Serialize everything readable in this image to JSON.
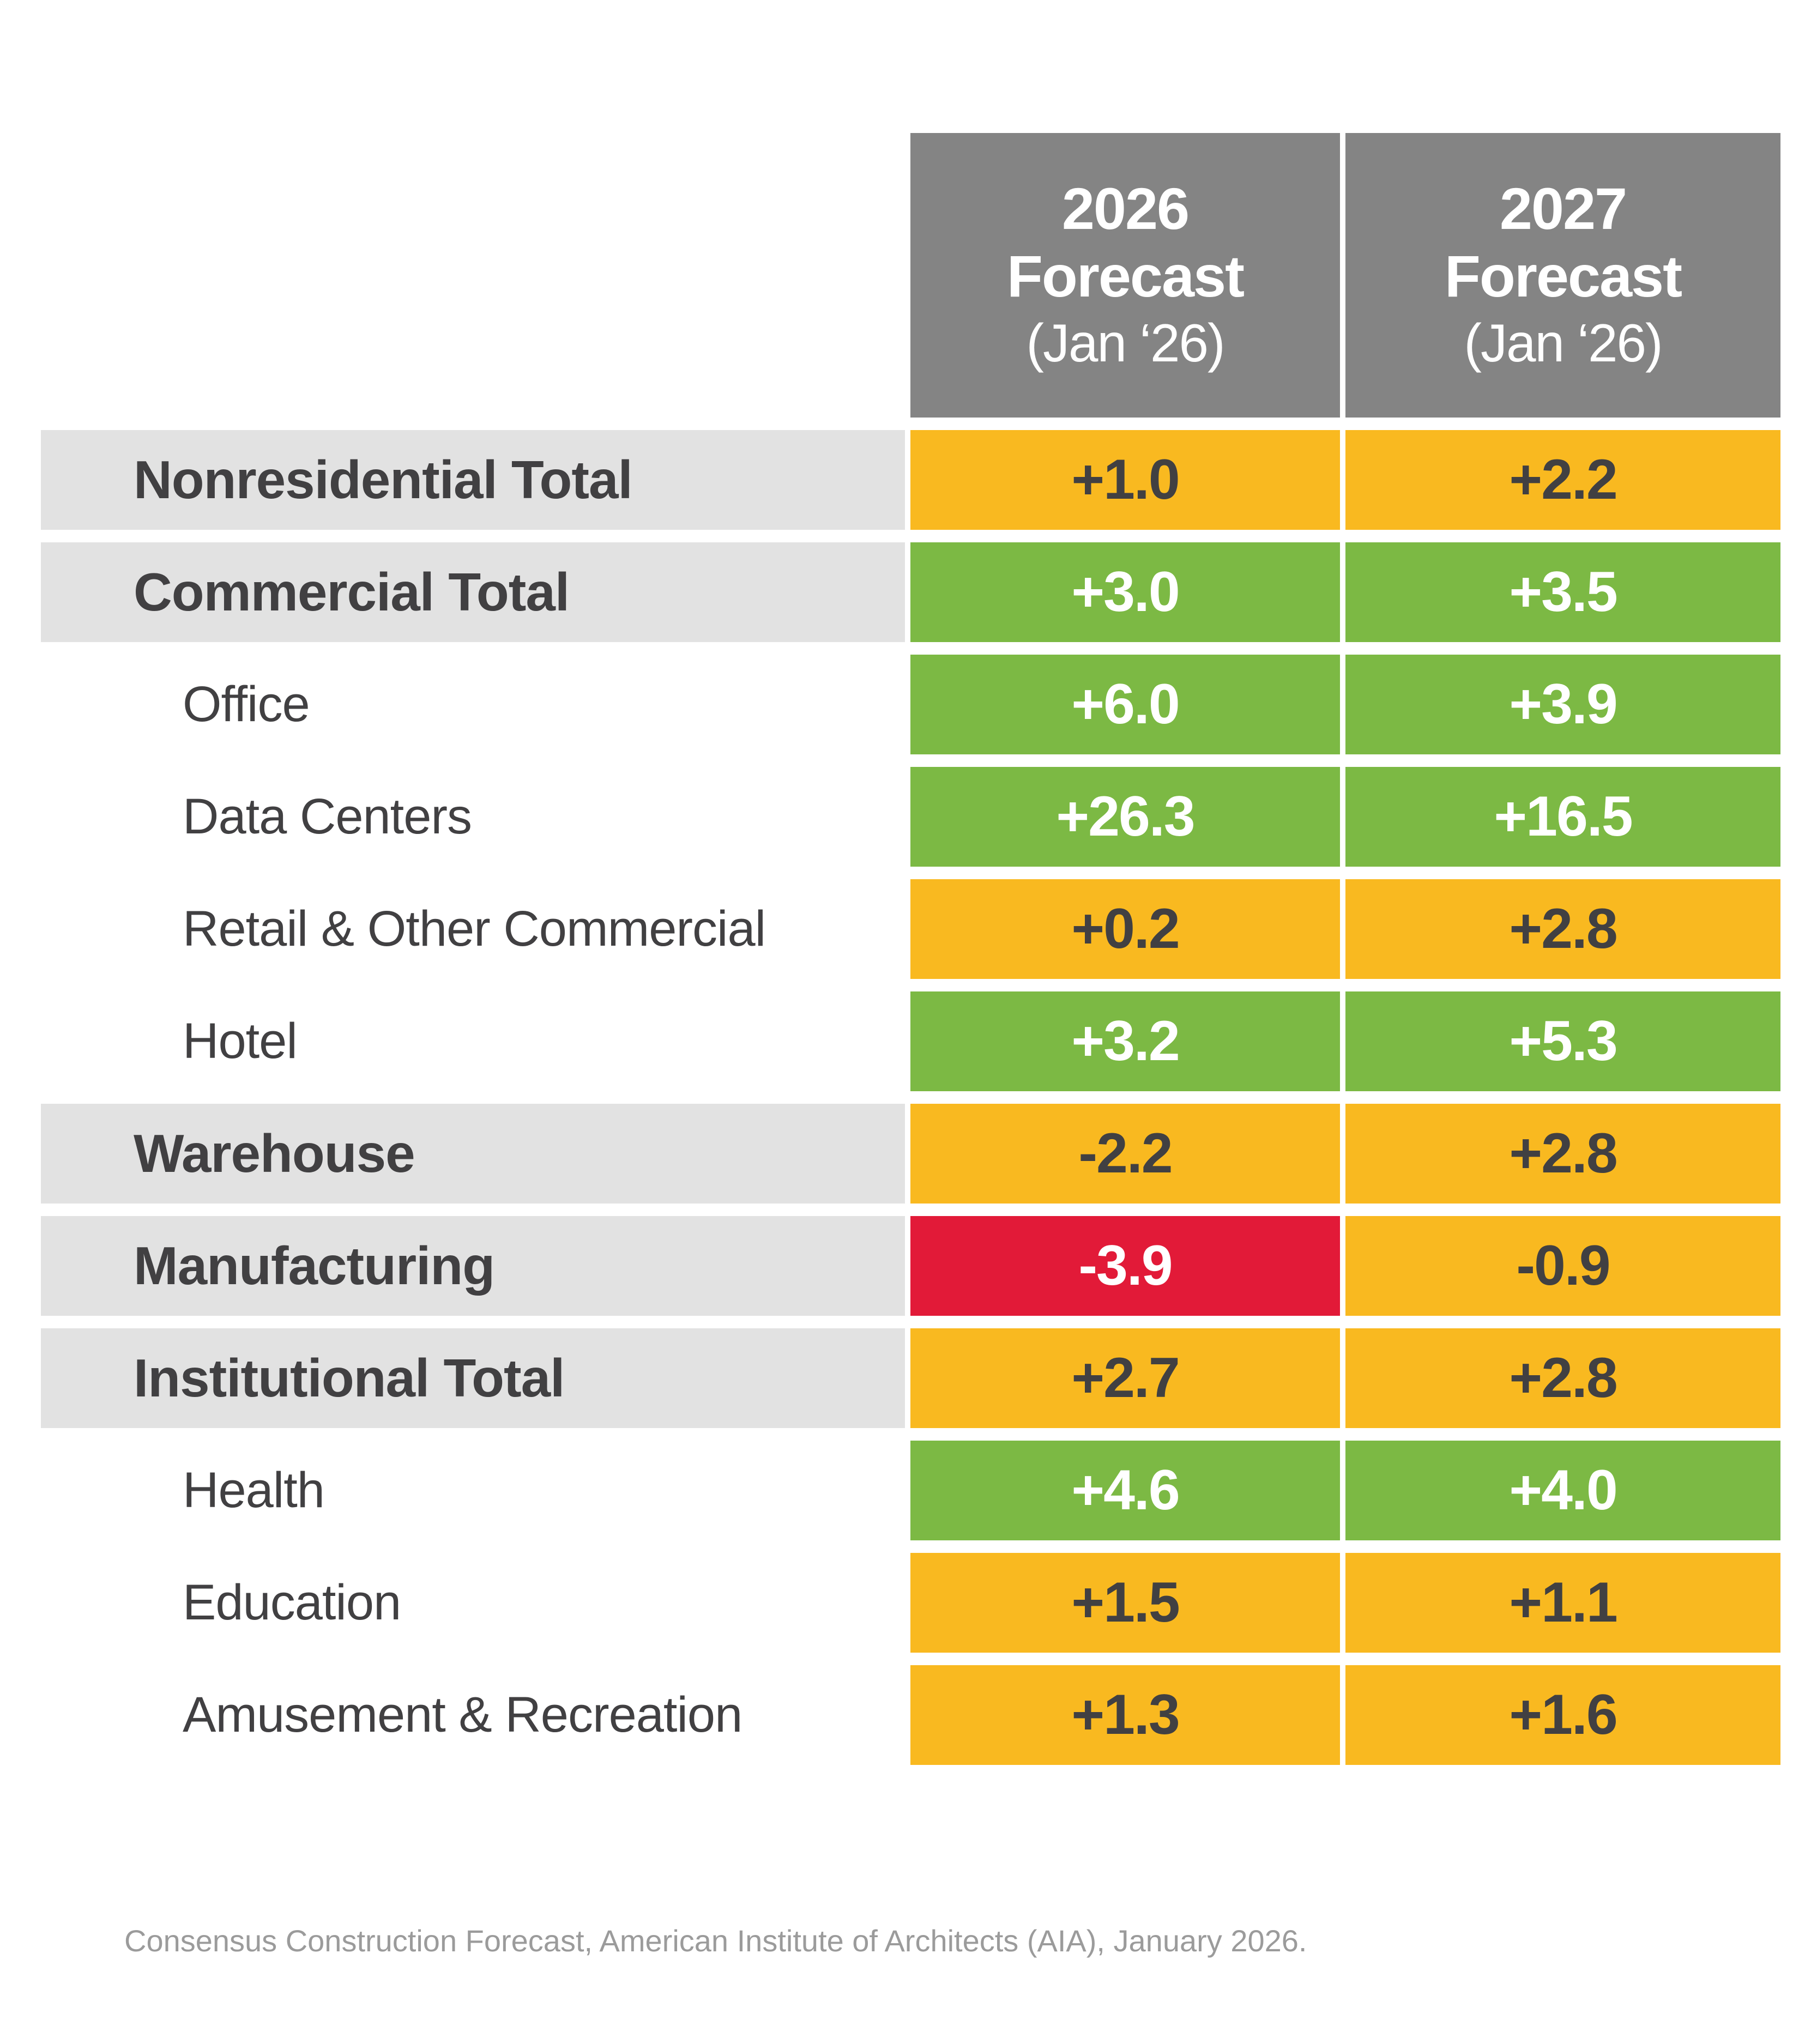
{
  "chart_data": {
    "type": "table",
    "title": "",
    "columns": [
      "2026 Forecast (Jan ‘26)",
      "2027 Forecast (Jan ‘26)"
    ],
    "categories": [
      "Nonresidential Total",
      "Commercial Total",
      "Office",
      "Data Centers",
      "Retail & Other Commercial",
      "Hotel",
      "Warehouse",
      "Manufacturing",
      "Institutional Total",
      "Health",
      "Education",
      "Amusement & Recreation"
    ],
    "series": [
      {
        "name": "2026 Forecast (Jan ‘26)",
        "values": [
          1.0,
          3.0,
          6.0,
          26.3,
          0.2,
          3.2,
          -2.2,
          -3.9,
          2.7,
          4.6,
          1.5,
          1.3
        ]
      },
      {
        "name": "2027 Forecast (Jan ‘26)",
        "values": [
          2.2,
          3.5,
          3.9,
          16.5,
          2.8,
          5.3,
          2.8,
          -0.9,
          2.8,
          4.0,
          1.1,
          1.6
        ]
      }
    ],
    "cell_color_coding": {
      "green": "growth of roughly 3% or more",
      "orange": "modest growth / slight decline",
      "red": "significant decline"
    },
    "legend_position": "none",
    "grid": false
  },
  "header": {
    "col_2026": {
      "year": "2026",
      "label": "Forecast",
      "sub": "(Jan ‘26)"
    },
    "col_2027": {
      "year": "2027",
      "label": "Forecast",
      "sub": "(Jan ‘26)"
    }
  },
  "rows": [
    {
      "label": "Nonresidential Total",
      "level": "total",
      "f2026": {
        "value": "+1.0",
        "color": "orange"
      },
      "f2027": {
        "value": "+2.2",
        "color": "orange"
      }
    },
    {
      "label": "Commercial Total",
      "level": "total",
      "f2026": {
        "value": "+3.0",
        "color": "green"
      },
      "f2027": {
        "value": "+3.5",
        "color": "green"
      }
    },
    {
      "label": "Office",
      "level": "sub",
      "f2026": {
        "value": "+6.0",
        "color": "green"
      },
      "f2027": {
        "value": "+3.9",
        "color": "green"
      }
    },
    {
      "label": "Data Centers",
      "level": "sub",
      "f2026": {
        "value": "+26.3",
        "color": "green"
      },
      "f2027": {
        "value": "+16.5",
        "color": "green"
      }
    },
    {
      "label": "Retail & Other Commercial",
      "level": "sub",
      "f2026": {
        "value": "+0.2",
        "color": "orange"
      },
      "f2027": {
        "value": "+2.8",
        "color": "orange"
      }
    },
    {
      "label": "Hotel",
      "level": "sub",
      "f2026": {
        "value": "+3.2",
        "color": "green"
      },
      "f2027": {
        "value": "+5.3",
        "color": "green"
      }
    },
    {
      "label": "Warehouse",
      "level": "total",
      "f2026": {
        "value": "-2.2",
        "color": "orange"
      },
      "f2027": {
        "value": "+2.8",
        "color": "orange"
      }
    },
    {
      "label": "Manufacturing",
      "level": "total",
      "f2026": {
        "value": "-3.9",
        "color": "red"
      },
      "f2027": {
        "value": "-0.9",
        "color": "orange"
      }
    },
    {
      "label": "Institutional Total",
      "level": "total",
      "f2026": {
        "value": "+2.7",
        "color": "orange"
      },
      "f2027": {
        "value": "+2.8",
        "color": "orange"
      }
    },
    {
      "label": "Health",
      "level": "sub",
      "f2026": {
        "value": "+4.6",
        "color": "green"
      },
      "f2027": {
        "value": "+4.0",
        "color": "green"
      }
    },
    {
      "label": "Education",
      "level": "sub",
      "f2026": {
        "value": "+1.5",
        "color": "orange"
      },
      "f2027": {
        "value": "+1.1",
        "color": "orange"
      }
    },
    {
      "label": "Amusement & Recreation",
      "level": "sub",
      "f2026": {
        "value": "+1.3",
        "color": "orange"
      },
      "f2027": {
        "value": "+1.6",
        "color": "orange"
      }
    }
  ],
  "footer": {
    "source_note": "Consensus Construction Forecast, American Institute of Architects (AIA), January 2026."
  },
  "colors": {
    "green": "#7CB944",
    "orange": "#F9B920",
    "red": "#E21A38",
    "header_gray": "#848484",
    "total_row_gray": "#E2E2E2",
    "dark_text": "#414042",
    "footer_text": "#9B9B9B"
  }
}
